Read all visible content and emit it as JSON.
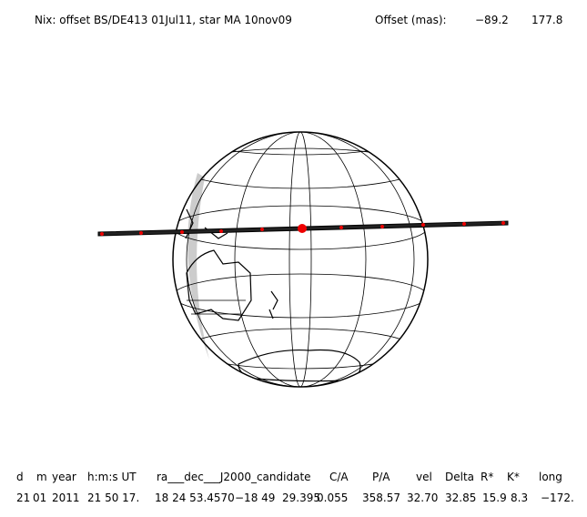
{
  "header": {
    "title": "Nix: offset BS/DE413 01Jul11, star MA 10nov09",
    "offset_label": "Offset (mas):",
    "offset_values": [
      "−89.2",
      "177.8"
    ]
  },
  "table": {
    "columns": [
      "d",
      "m",
      "year",
      "h:m:s UT",
      "ra___dec___J2000_candidate",
      "C/A",
      "P/A",
      "vel",
      "Delta",
      "R*",
      "K*",
      "long"
    ],
    "row": [
      "21",
      "01",
      "2011",
      "21 50 17.",
      "18 24 53.4570",
      "−18 49  29.395",
      "0.055",
      "358.57",
      "32.70",
      "32.85",
      "15.9",
      "8.3",
      "−172."
    ]
  }
}
